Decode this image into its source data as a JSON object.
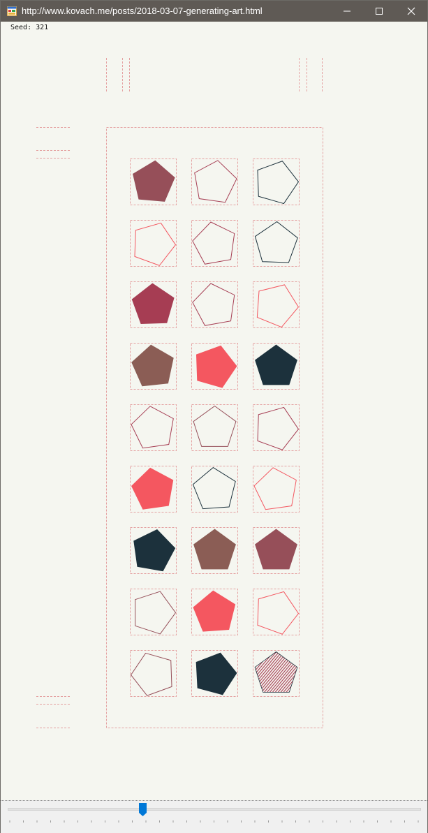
{
  "window": {
    "title": "http://www.kovach.me/posts/2018-03-07-generating-art.html",
    "icons": {
      "app": "app-window-icon",
      "minimize": "minimize-icon",
      "maximize": "maximize-icon",
      "close": "close-icon"
    }
  },
  "seed": {
    "label": "Seed: 321"
  },
  "artwork": {
    "grid": {
      "rows": 9,
      "cols": 3
    },
    "palette": {
      "maroon": "#964f59",
      "crimson": "#a63d53",
      "brown": "#8b5d55",
      "coral": "#f45760",
      "navy": "#1c313c",
      "guides": "#e4a0a0"
    },
    "tiles": [
      {
        "row": 1,
        "col": 1,
        "color": "#964f59",
        "style": "filled",
        "rotation": 5
      },
      {
        "row": 1,
        "col": 2,
        "color": "#a63d53",
        "style": "outline",
        "rotation": 8
      },
      {
        "row": 1,
        "col": 3,
        "color": "#1c313c",
        "style": "outline",
        "rotation": 16
      },
      {
        "row": 2,
        "col": 1,
        "color": "#f45760",
        "style": "outline",
        "rotation": 20
      },
      {
        "row": 2,
        "col": 2,
        "color": "#a63d53",
        "style": "outline",
        "rotation": -10
      },
      {
        "row": 2,
        "col": 3,
        "color": "#1c313c",
        "style": "outline",
        "rotation": 2
      },
      {
        "row": 3,
        "col": 1,
        "color": "#a63d53",
        "style": "filled",
        "rotation": -2
      },
      {
        "row": 3,
        "col": 2,
        "color": "#a63d53",
        "style": "outline",
        "rotation": -10
      },
      {
        "row": 3,
        "col": 3,
        "color": "#f45760",
        "style": "outline",
        "rotation": 22
      },
      {
        "row": 4,
        "col": 1,
        "color": "#8b5d55",
        "style": "filled",
        "rotation": -6
      },
      {
        "row": 4,
        "col": 2,
        "color": "#f45760",
        "style": "filled",
        "rotation": 16
      },
      {
        "row": 4,
        "col": 3,
        "color": "#1c313c",
        "style": "filled",
        "rotation": 0
      },
      {
        "row": 5,
        "col": 1,
        "color": "#a63d53",
        "style": "outline",
        "rotation": -8
      },
      {
        "row": 5,
        "col": 2,
        "color": "#964f59",
        "style": "outline",
        "rotation": 0
      },
      {
        "row": 5,
        "col": 3,
        "color": "#a63d53",
        "style": "outline",
        "rotation": 20
      },
      {
        "row": 6,
        "col": 1,
        "color": "#f45760",
        "style": "filled",
        "rotation": -8
      },
      {
        "row": 6,
        "col": 2,
        "color": "#1c313c",
        "style": "outline",
        "rotation": -4
      },
      {
        "row": 6,
        "col": 3,
        "color": "#f45760",
        "style": "outline",
        "rotation": -8
      },
      {
        "row": 7,
        "col": 1,
        "color": "#1c313c",
        "style": "filled",
        "rotation": 10
      },
      {
        "row": 7,
        "col": 2,
        "color": "#8b5d55",
        "style": "filled",
        "rotation": 0
      },
      {
        "row": 7,
        "col": 3,
        "color": "#964f59",
        "style": "filled",
        "rotation": 0
      },
      {
        "row": 8,
        "col": 1,
        "color": "#964f59",
        "style": "outline",
        "rotation": 18
      },
      {
        "row": 8,
        "col": 2,
        "color": "#f45760",
        "style": "filled",
        "rotation": -4
      },
      {
        "row": 8,
        "col": 3,
        "color": "#f45760",
        "style": "outline",
        "rotation": 20
      },
      {
        "row": 9,
        "col": 1,
        "color": "#964f59",
        "style": "outline",
        "rotation": -20
      },
      {
        "row": 9,
        "col": 2,
        "color": "#1c313c",
        "style": "filled",
        "rotation": 15
      },
      {
        "row": 9,
        "col": 3,
        "color": "#a63d53",
        "style": "hatched",
        "rotation": 0
      }
    ]
  },
  "slider": {
    "value_fraction": 0.33,
    "tick_count": 31,
    "accent": "#0078d7"
  }
}
